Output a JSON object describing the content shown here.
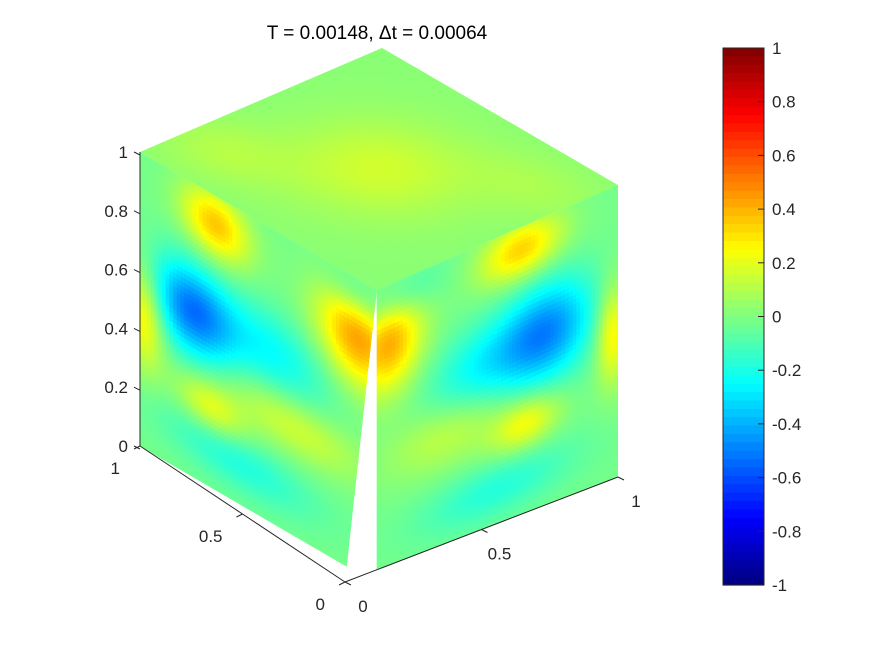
{
  "chart_data": {
    "type": "heatmap",
    "title": "T = 0.00148,  Δt = 0.00064",
    "view": "3d-cube-surface",
    "x_axis": {
      "label": "",
      "ticks": [
        "0",
        "0.5",
        "1"
      ],
      "range": [
        0,
        1
      ]
    },
    "y_axis": {
      "label": "",
      "ticks": [
        "0",
        "0.5",
        "1"
      ],
      "range": [
        0,
        1
      ]
    },
    "z_axis": {
      "label": "",
      "ticks": [
        "0",
        "0.2",
        "0.4",
        "0.6",
        "0.8",
        "1"
      ],
      "range": [
        0,
        1
      ]
    },
    "colorbar": {
      "colormap": "jet",
      "range": [
        -1,
        1
      ],
      "ticks": [
        "1",
        "0.8",
        "0.6",
        "0.4",
        "0.2",
        "0",
        "-0.2",
        "-0.4",
        "-0.6",
        "-0.8",
        "-1"
      ]
    },
    "faces": {
      "top": {
        "background": 0.02,
        "blobs": [
          {
            "u": 0.5,
            "v": 0.5,
            "su": 0.2,
            "sv": 0.2,
            "value": 0.14
          },
          {
            "u": 0.15,
            "v": 0.2,
            "su": 0.15,
            "sv": 0.12,
            "value": 0.08
          },
          {
            "u": 0.85,
            "v": 0.8,
            "su": 0.15,
            "sv": 0.12,
            "value": 0.06
          }
        ]
      },
      "left": {
        "background": -0.02,
        "blobs": [
          {
            "u": 0.22,
            "v": 0.44,
            "su": 0.12,
            "sv": 0.11,
            "value": -0.48
          },
          {
            "u": 0.3,
            "v": 0.73,
            "su": 0.1,
            "sv": 0.06,
            "value": 0.23
          },
          {
            "u": 0.65,
            "v": 0.63,
            "su": 0.2,
            "sv": 0.07,
            "value": 0.18
          },
          {
            "u": 0.55,
            "v": 0.42,
            "su": 0.18,
            "sv": 0.1,
            "value": -0.22
          },
          {
            "u": 0.42,
            "v": 0.86,
            "su": 0.22,
            "sv": 0.07,
            "value": -0.17
          },
          {
            "u": 0.92,
            "v": 0.2,
            "su": 0.12,
            "sv": 0.12,
            "value": 0.46
          },
          {
            "u": 0.32,
            "v": 0.1,
            "su": 0.1,
            "sv": 0.08,
            "value": 0.38
          },
          {
            "u": 0.02,
            "v": 0.55,
            "su": 0.06,
            "sv": 0.12,
            "value": 0.3
          },
          {
            "u": 0.92,
            "v": 0.06,
            "su": 0.1,
            "sv": 0.06,
            "value": -0.18
          }
        ]
      },
      "right": {
        "background": -0.02,
        "blobs": [
          {
            "u": 0.7,
            "v": 0.4,
            "su": 0.14,
            "sv": 0.12,
            "value": -0.46
          },
          {
            "u": 0.62,
            "v": 0.68,
            "su": 0.1,
            "sv": 0.06,
            "value": 0.26
          },
          {
            "u": 0.3,
            "v": 0.6,
            "su": 0.18,
            "sv": 0.08,
            "value": 0.15
          },
          {
            "u": 0.42,
            "v": 0.42,
            "su": 0.15,
            "sv": 0.1,
            "value": -0.2
          },
          {
            "u": 0.5,
            "v": 0.86,
            "su": 0.22,
            "sv": 0.07,
            "value": -0.16
          },
          {
            "u": 0.05,
            "v": 0.2,
            "su": 0.1,
            "sv": 0.12,
            "value": 0.44
          },
          {
            "u": 0.6,
            "v": 0.08,
            "su": 0.12,
            "sv": 0.07,
            "value": 0.36
          },
          {
            "u": 0.98,
            "v": 0.5,
            "su": 0.05,
            "sv": 0.12,
            "value": 0.3
          },
          {
            "u": 0.08,
            "v": 0.06,
            "su": 0.12,
            "sv": 0.06,
            "value": -0.18
          }
        ]
      }
    }
  }
}
